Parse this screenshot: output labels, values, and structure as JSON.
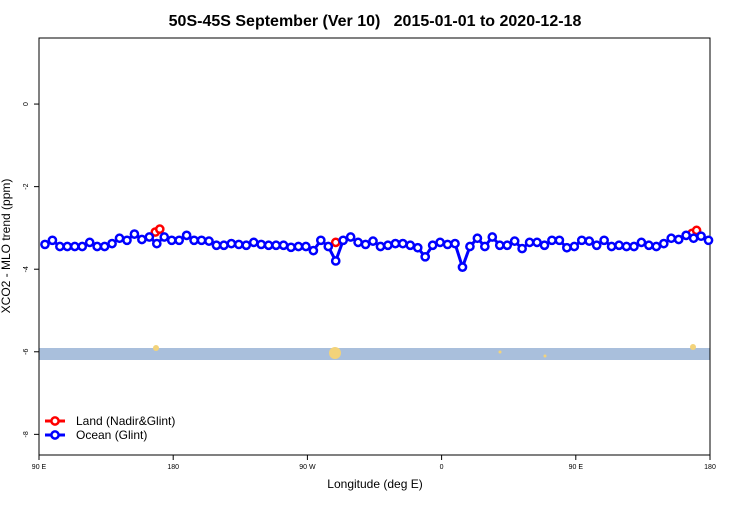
{
  "chart_data": {
    "type": "line",
    "title": "50S-45S September (Ver 10)   2015-01-01 to 2020-12-18",
    "x_label": "Longitude (deg E)",
    "y_label": "XCO2 - MLO trend (ppm)",
    "xlim": [
      90,
      540
    ],
    "ylim": [
      -8.5,
      1.6
    ],
    "xticks": [
      {
        "value": 90,
        "label": "90 E"
      },
      180,
      {
        "value": 270,
        "label": "90 W"
      },
      {
        "value": 360,
        "label": "0"
      },
      {
        "value": 450,
        "label": "90 E"
      },
      {
        "value": 540,
        "label": "180"
      }
    ],
    "yticks": [
      0,
      -2,
      -4,
      -6,
      -8
    ],
    "grid": false,
    "legend": "bottomleft",
    "series": [
      {
        "name": "Land (Nadir&Glint)",
        "color": "#ff0000",
        "x": [
          168,
          171,
          176,
          289,
          294,
          528,
          531
        ],
        "values": [
          -3.1,
          -3.03,
          null,
          -3.35,
          null,
          -3.13,
          -3.06
        ]
      },
      {
        "name": "Ocean (Glint)",
        "color": "#0000ff",
        "x": [
          94,
          99,
          104,
          109,
          114,
          119,
          124,
          129,
          134,
          139,
          144,
          149,
          154,
          159,
          164,
          169,
          174,
          179,
          184,
          189,
          194,
          199,
          204,
          209,
          214,
          219,
          224,
          229,
          234,
          239,
          244,
          249,
          254,
          259,
          264,
          269,
          274,
          279,
          284,
          289,
          294,
          299,
          304,
          309,
          314,
          319,
          324,
          329,
          334,
          339,
          344,
          349,
          354,
          359,
          364,
          369,
          374,
          379,
          384,
          389,
          394,
          399,
          404,
          409,
          414,
          419,
          424,
          429,
          434,
          439,
          444,
          449,
          454,
          459,
          464,
          469,
          474,
          479,
          484,
          489,
          494,
          499,
          504,
          509,
          514,
          519,
          524,
          529,
          534,
          539
        ],
        "values": [
          -3.4,
          -3.3,
          -3.45,
          -3.45,
          -3.45,
          -3.45,
          -3.35,
          -3.45,
          -3.45,
          -3.38,
          -3.25,
          -3.3,
          -3.15,
          -3.28,
          -3.22,
          -3.38,
          -3.22,
          -3.3,
          -3.3,
          -3.18,
          -3.3,
          -3.3,
          -3.32,
          -3.42,
          -3.42,
          -3.38,
          -3.4,
          -3.42,
          -3.35,
          -3.4,
          -3.42,
          -3.42,
          -3.42,
          -3.47,
          -3.45,
          -3.45,
          -3.55,
          -3.3,
          -3.45,
          -3.8,
          -3.3,
          -3.22,
          -3.35,
          -3.4,
          -3.32,
          -3.45,
          -3.42,
          -3.38,
          -3.38,
          -3.42,
          -3.48,
          -3.7,
          -3.42,
          -3.35,
          -3.4,
          -3.38,
          -3.95,
          -3.45,
          -3.25,
          -3.45,
          -3.22,
          -3.42,
          -3.42,
          -3.32,
          -3.5,
          -3.35,
          -3.35,
          -3.42,
          -3.3,
          -3.3,
          -3.48,
          -3.45,
          -3.3,
          -3.32,
          -3.42,
          -3.3,
          -3.45,
          -3.42,
          -3.45,
          -3.45,
          -3.35,
          -3.42,
          -3.45,
          -3.38,
          -3.25,
          -3.28,
          -3.18,
          -3.25,
          -3.2,
          -3.3
        ]
      }
    ]
  }
}
